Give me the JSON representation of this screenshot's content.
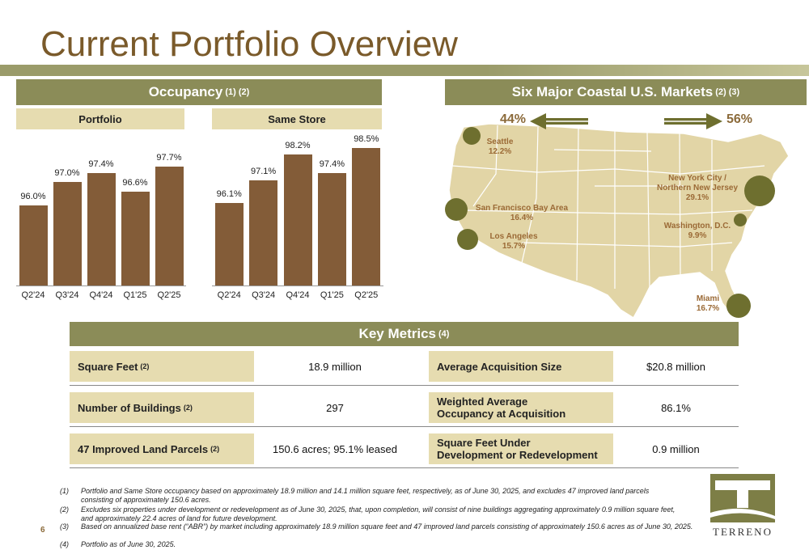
{
  "title": "Current Portfolio Overview",
  "occupancy": {
    "header": "Occupancy",
    "header_sup": "(1) (2)",
    "portfolio_label": "Portfolio",
    "same_store_label": "Same Store"
  },
  "chart_data": [
    {
      "type": "bar",
      "title": "Portfolio",
      "categories": [
        "Q2'24",
        "Q3'24",
        "Q4'24",
        "Q1'25",
        "Q2'25"
      ],
      "values": [
        96.0,
        97.0,
        97.4,
        96.6,
        97.7
      ],
      "labels": [
        "96.0%",
        "97.0%",
        "97.4%",
        "96.6%",
        "97.7%"
      ],
      "unit": "%"
    },
    {
      "type": "bar",
      "title": "Same Store",
      "categories": [
        "Q2'24",
        "Q3'24",
        "Q4'24",
        "Q1'25",
        "Q2'25"
      ],
      "values": [
        96.1,
        97.1,
        98.2,
        97.4,
        98.5
      ],
      "labels": [
        "96.1%",
        "97.1%",
        "98.2%",
        "97.4%",
        "98.5%"
      ],
      "unit": "%"
    }
  ],
  "markets": {
    "header": "Six Major Coastal U.S. Markets",
    "header_sup": "(2) (3)",
    "west_pct": "44%",
    "east_pct": "56%",
    "items": [
      {
        "name": "Seattle",
        "pct": "12.2%"
      },
      {
        "name": "San Francisco Bay Area",
        "pct": "16.4%"
      },
      {
        "name": "Los Angeles",
        "pct": "15.7%"
      },
      {
        "name": "New York City / Northern New Jersey",
        "name_line1": "New York City /",
        "name_line2": "Northern New Jersey",
        "pct": "29.1%"
      },
      {
        "name": "Washington, D.C.",
        "pct": "9.9%"
      },
      {
        "name": "Miami",
        "pct": "16.7%"
      }
    ],
    "colors": {
      "map": "#e2d5a6",
      "dot": "#6e6f2f",
      "arrow": "#6e6f2f"
    }
  },
  "key_metrics": {
    "header": "Key Metrics",
    "header_sup": "(4)",
    "rows": [
      {
        "left_label": "Square Feet",
        "left_sup": "(2)",
        "left_value": "18.9 million",
        "right_label": "Average Acquisition Size",
        "right_value": "$20.8 million"
      },
      {
        "left_label": "Number of Buildings",
        "left_sup": "(2)",
        "left_value": "297",
        "right_label": "Weighted Average Occupancy at Acquisition",
        "right_label_1": "Weighted Average",
        "right_label_2": "Occupancy at Acquisition",
        "right_value": "86.1%"
      },
      {
        "left_label": "47 Improved Land Parcels",
        "left_sup": "(2)",
        "left_value": "150.6 acres; 95.1% leased",
        "right_label": "Square Feet Under Development or Redevelopment",
        "right_label_1": "Square Feet Under",
        "right_label_2": "Development or Redevelopment",
        "right_value": "0.9 million"
      }
    ]
  },
  "footnotes": [
    {
      "num": "(1)",
      "text": "Portfolio and Same Store occupancy based on approximately 18.9 million and 14.1 million square feet, respectively, as of June 30, 2025, and excludes 47 improved land parcels consisting of approximately 150.6 acres."
    },
    {
      "num": "(2)",
      "text": "Excludes six properties under development or redevelopment as of June 30, 2025, that, upon completion, will consist of nine buildings aggregating approximately 0.9 million square feet, and approximately 22.4 acres of land for future development."
    },
    {
      "num": "(3)",
      "text": "Based on annualized base rent (“ABR”) by market including approximately 18.9 million square feet and 47 improved land parcels consisting of approximately 150.6 acres as of June 30, 2025."
    },
    {
      "num": "(4)",
      "text": "Portfolio as of June 30, 2025."
    }
  ],
  "page_number": "6",
  "logo": {
    "text": "TERRENO",
    "letter": "T",
    "color": "#7d7e46"
  }
}
